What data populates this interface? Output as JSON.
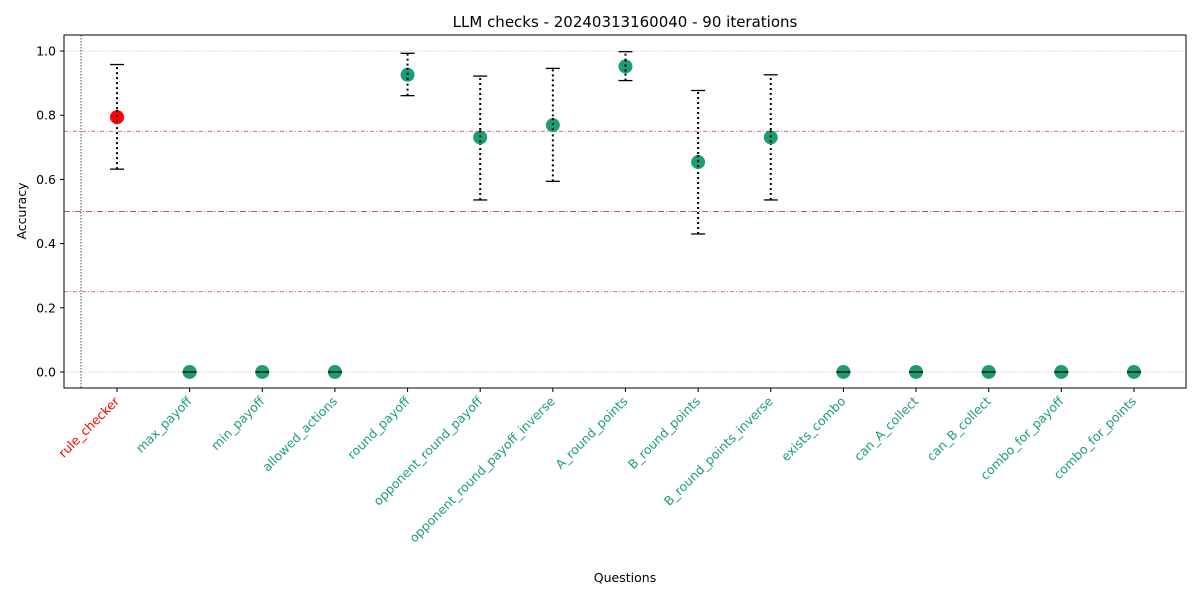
{
  "chart_data": {
    "type": "scatter",
    "title": "LLM checks - 20240313160040 - 90 iterations",
    "xlabel": "Questions",
    "ylabel": "Accuracy",
    "ylim": [
      -0.05,
      1.05
    ],
    "yticks": [
      0.0,
      0.2,
      0.4,
      0.6,
      0.8,
      1.0
    ],
    "ytick_labels": [
      "0.0",
      "0.2",
      "0.4",
      "0.6",
      "0.8",
      "1.0"
    ],
    "reference_lines": [
      0.0,
      0.25,
      0.5,
      0.75,
      1.0
    ],
    "colors": {
      "point": "#1b9e77",
      "highlight": "#ff0000",
      "reference": "#d62728",
      "errorbar": "#000000"
    },
    "points": [
      {
        "label": "rule_checker",
        "value": 0.794,
        "lower": 0.632,
        "upper": 0.958,
        "highlight": true
      },
      {
        "label": "max_payoff",
        "value": 0.0,
        "lower": null,
        "upper": null,
        "highlight": false
      },
      {
        "label": "min_payoff",
        "value": 0.0,
        "lower": null,
        "upper": null,
        "highlight": false
      },
      {
        "label": "allowed_actions",
        "value": 0.0,
        "lower": null,
        "upper": null,
        "highlight": false
      },
      {
        "label": "round_payoff",
        "value": 0.926,
        "lower": 0.861,
        "upper": 0.993,
        "highlight": false
      },
      {
        "label": "opponent_round_payoff",
        "value": 0.731,
        "lower": 0.536,
        "upper": 0.922,
        "highlight": false
      },
      {
        "label": "opponent_round_payoff_inverse",
        "value": 0.769,
        "lower": 0.594,
        "upper": 0.946,
        "highlight": false
      },
      {
        "label": "A_round_points",
        "value": 0.952,
        "lower": 0.908,
        "upper": 0.998,
        "highlight": false
      },
      {
        "label": "B_round_points",
        "value": 0.654,
        "lower": 0.43,
        "upper": 0.877,
        "highlight": false
      },
      {
        "label": "B_round_points_inverse",
        "value": 0.731,
        "lower": 0.536,
        "upper": 0.926,
        "highlight": false
      },
      {
        "label": "exists_combo",
        "value": 0.0,
        "lower": null,
        "upper": null,
        "highlight": false
      },
      {
        "label": "can_A_collect",
        "value": 0.0,
        "lower": null,
        "upper": null,
        "highlight": false
      },
      {
        "label": "can_B_collect",
        "value": 0.0,
        "lower": null,
        "upper": null,
        "highlight": false
      },
      {
        "label": "combo_for_payoff",
        "value": 0.0,
        "lower": null,
        "upper": null,
        "highlight": false
      },
      {
        "label": "combo_for_points",
        "value": 0.0,
        "lower": null,
        "upper": null,
        "highlight": false
      }
    ]
  }
}
